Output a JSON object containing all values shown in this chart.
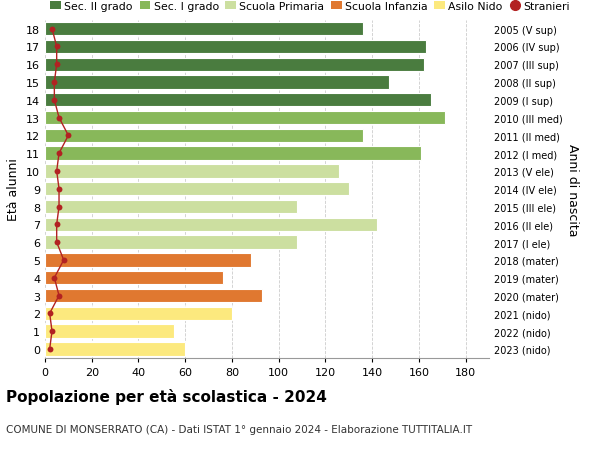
{
  "ages": [
    0,
    1,
    2,
    3,
    4,
    5,
    6,
    7,
    8,
    9,
    10,
    11,
    12,
    13,
    14,
    15,
    16,
    17,
    18
  ],
  "values": [
    60,
    55,
    80,
    93,
    76,
    88,
    108,
    142,
    108,
    130,
    126,
    161,
    136,
    171,
    165,
    147,
    162,
    163,
    136
  ],
  "right_labels": [
    "2023 (nido)",
    "2022 (nido)",
    "2021 (nido)",
    "2020 (mater)",
    "2019 (mater)",
    "2018 (mater)",
    "2017 (I ele)",
    "2016 (II ele)",
    "2015 (III ele)",
    "2014 (IV ele)",
    "2013 (V ele)",
    "2012 (I med)",
    "2011 (II med)",
    "2010 (III med)",
    "2009 (I sup)",
    "2008 (II sup)",
    "2007 (III sup)",
    "2006 (IV sup)",
    "2005 (V sup)"
  ],
  "bar_colors": [
    "#fce97e",
    "#fce97e",
    "#fce97e",
    "#e07830",
    "#e07830",
    "#e07830",
    "#ccdfa0",
    "#ccdfa0",
    "#ccdfa0",
    "#ccdfa0",
    "#ccdfa0",
    "#88b85a",
    "#88b85a",
    "#88b85a",
    "#4a7c3f",
    "#4a7c3f",
    "#4a7c3f",
    "#4a7c3f",
    "#4a7c3f"
  ],
  "stranieri_values": [
    2,
    3,
    2,
    6,
    4,
    8,
    5,
    5,
    6,
    6,
    5,
    6,
    10,
    6,
    4,
    4,
    5,
    5,
    3
  ],
  "legend_labels": [
    "Sec. II grado",
    "Sec. I grado",
    "Scuola Primaria",
    "Scuola Infanzia",
    "Asilo Nido",
    "Stranieri"
  ],
  "legend_colors": [
    "#4a7c3f",
    "#88b85a",
    "#ccdfa0",
    "#e07830",
    "#fce97e",
    "#b22222"
  ],
  "ylabel": "Età alunni",
  "right_ylabel": "Anni di nascita",
  "title": "Popolazione per età scolastica - 2024",
  "subtitle": "COMUNE DI MONSERRATO (CA) - Dati ISTAT 1° gennaio 2024 - Elaborazione TUTTITALIA.IT",
  "xlim": [
    0,
    190
  ],
  "xticks": [
    0,
    20,
    40,
    60,
    80,
    100,
    120,
    140,
    160,
    180
  ],
  "bg_color": "#ffffff",
  "grid_color": "#cccccc",
  "bar_height": 0.75
}
